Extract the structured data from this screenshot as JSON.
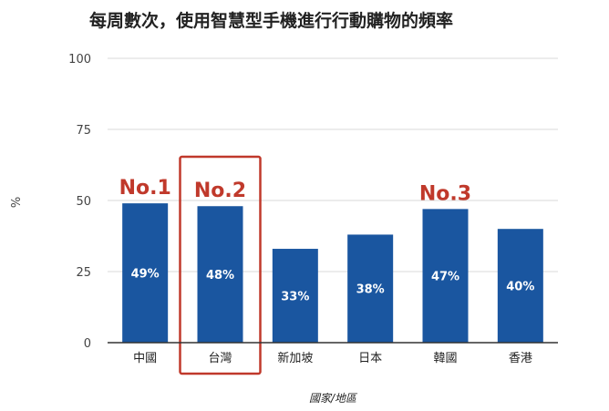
{
  "chart_data": {
    "type": "bar",
    "title": "每周數次，使用智慧型手機進行行動購物的頻率",
    "xlabel": "國家/地區",
    "ylabel": "%",
    "ylim": [
      0,
      100
    ],
    "yticks": [
      0,
      25,
      50,
      75,
      100
    ],
    "grid": true,
    "bar_color": "#1a56a0",
    "categories": [
      "中國",
      "台灣",
      "新加坡",
      "日本",
      "韓國",
      "香港"
    ],
    "values": [
      49,
      48,
      33,
      38,
      47,
      40
    ],
    "data_labels": [
      "49%",
      "48%",
      "33%",
      "38%",
      "47%",
      "40%"
    ],
    "annotations": [
      {
        "category": "中國",
        "text": "No.1"
      },
      {
        "category": "台灣",
        "text": "No.2",
        "highlight_box": true,
        "box_color": "#c0392b"
      },
      {
        "category": "韓國",
        "text": "No.3"
      }
    ]
  }
}
